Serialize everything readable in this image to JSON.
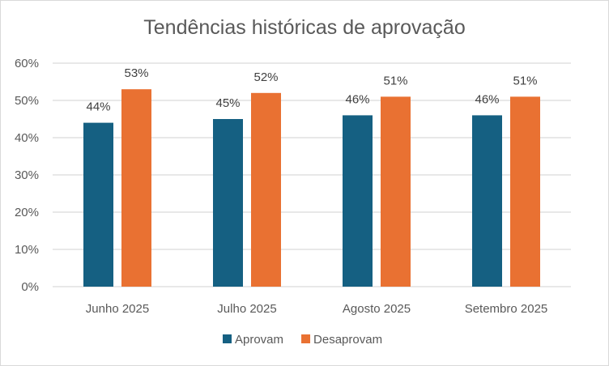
{
  "chart_data": {
    "type": "bar",
    "title": "Tendências históricas de aprovação",
    "xlabel": "",
    "ylabel": "",
    "categories": [
      "Junho 2025",
      "Julho 2025",
      "Agosto 2025",
      "Setembro 2025"
    ],
    "series": [
      {
        "name": "Aprovam",
        "values": [
          44,
          45,
          46,
          46
        ],
        "color": "#156082"
      },
      {
        "name": "Desaprovam",
        "values": [
          53,
          52,
          51,
          51
        ],
        "color": "#E97132"
      }
    ],
    "ylim": [
      0,
      60
    ],
    "yticks": [
      0,
      10,
      20,
      30,
      40,
      50,
      60
    ],
    "ytick_format": "{v}%",
    "data_label_format": "{v}%",
    "grid": true,
    "legend_position": "bottom"
  }
}
